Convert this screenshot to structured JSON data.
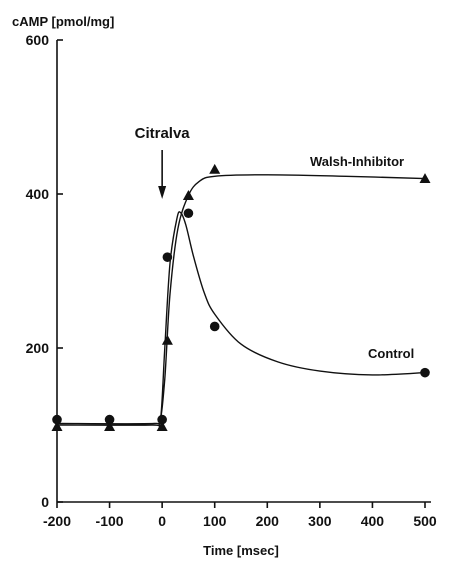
{
  "chart_data": {
    "type": "scatter",
    "title": "",
    "xlabel": "Time [msec]",
    "ylabel": "cAMP [pmol/mg]",
    "xlim": [
      -200,
      500
    ],
    "ylim": [
      0,
      600
    ],
    "x_ticks": [
      -200,
      -100,
      0,
      100,
      200,
      300,
      400,
      500
    ],
    "y_ticks": [
      0,
      200,
      400,
      600
    ],
    "grid": false,
    "legend": "none",
    "series": [
      {
        "name": "Walsh-Inhibitor",
        "marker": "triangle",
        "points": [
          {
            "x": -200,
            "y": 98
          },
          {
            "x": -100,
            "y": 98
          },
          {
            "x": 0,
            "y": 98
          },
          {
            "x": 10,
            "y": 210
          },
          {
            "x": 50,
            "y": 398
          },
          {
            "x": 100,
            "y": 432
          },
          {
            "x": 500,
            "y": 420
          }
        ],
        "curve": [
          {
            "x": -200,
            "y": 100
          },
          {
            "x": -20,
            "y": 100
          },
          {
            "x": -5,
            "y": 102
          },
          {
            "x": 5,
            "y": 160
          },
          {
            "x": 15,
            "y": 270
          },
          {
            "x": 30,
            "y": 355
          },
          {
            "x": 50,
            "y": 398
          },
          {
            "x": 70,
            "y": 416
          },
          {
            "x": 100,
            "y": 423
          },
          {
            "x": 200,
            "y": 425
          },
          {
            "x": 350,
            "y": 423
          },
          {
            "x": 500,
            "y": 420
          }
        ]
      },
      {
        "name": "Control",
        "marker": "circle",
        "points": [
          {
            "x": -200,
            "y": 107
          },
          {
            "x": -100,
            "y": 107
          },
          {
            "x": 0,
            "y": 107
          },
          {
            "x": 10,
            "y": 318
          },
          {
            "x": 50,
            "y": 375
          },
          {
            "x": 100,
            "y": 228
          },
          {
            "x": 500,
            "y": 168
          }
        ],
        "curve": [
          {
            "x": -200,
            "y": 102
          },
          {
            "x": -15,
            "y": 102
          },
          {
            "x": -3,
            "y": 108
          },
          {
            "x": 5,
            "y": 200
          },
          {
            "x": 15,
            "y": 310
          },
          {
            "x": 28,
            "y": 368
          },
          {
            "x": 35,
            "y": 376
          },
          {
            "x": 45,
            "y": 360
          },
          {
            "x": 60,
            "y": 318
          },
          {
            "x": 80,
            "y": 272
          },
          {
            "x": 100,
            "y": 244
          },
          {
            "x": 150,
            "y": 205
          },
          {
            "x": 220,
            "y": 182
          },
          {
            "x": 300,
            "y": 170
          },
          {
            "x": 400,
            "y": 165
          },
          {
            "x": 500,
            "y": 168
          }
        ]
      }
    ],
    "annotations": {
      "stimulus_label": "Citralva",
      "stimulus_x": 0,
      "walsh_label": "Walsh-Inhibitor",
      "control_label": "Control"
    }
  }
}
